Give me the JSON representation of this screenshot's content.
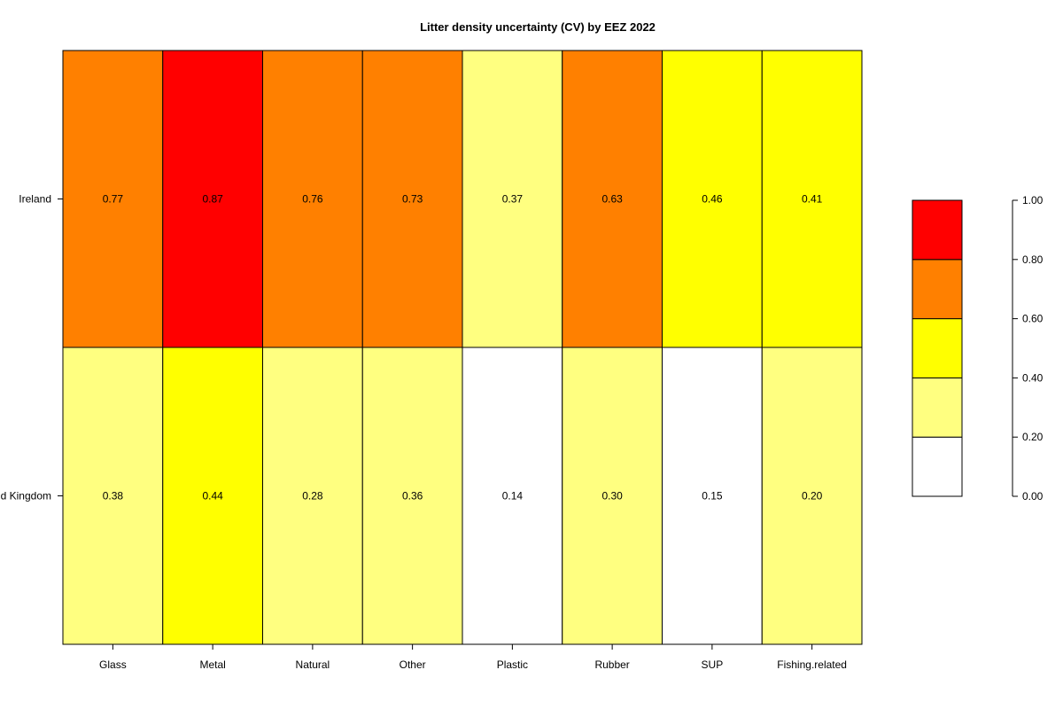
{
  "chart_data": {
    "type": "heatmap",
    "title": "Litter density uncertainty (CV) by EEZ 2022",
    "rows": [
      "Ireland",
      "d Kingdom"
    ],
    "columns": [
      "Glass",
      "Metal",
      "Natural",
      "Other",
      "Plastic",
      "Rubber",
      "SUP",
      "Fishing.related"
    ],
    "values": [
      [
        0.77,
        0.87,
        0.76,
        0.73,
        0.37,
        0.63,
        0.46,
        0.41
      ],
      [
        0.38,
        0.44,
        0.28,
        0.36,
        0.14,
        0.3,
        0.15,
        0.2
      ]
    ],
    "cell_labels": [
      [
        "0.77",
        "0.87",
        "0.76",
        "0.73",
        "0.37",
        "0.63",
        "0.46",
        "0.41"
      ],
      [
        "0.38",
        "0.44",
        "0.28",
        "0.36",
        "0.14",
        "0.30",
        "0.15",
        "0.20"
      ]
    ],
    "legend": {
      "placement": "right",
      "breaks": [
        0.0,
        0.2,
        0.4,
        0.6,
        0.8,
        1.0
      ],
      "tick_labels": [
        "0.00",
        "0.20",
        "0.40",
        "0.60",
        "0.80",
        "1.00"
      ],
      "colors": [
        "#FFFFFF",
        "#FFFF80",
        "#FFFF00",
        "#FF8000",
        "#FF0000"
      ]
    }
  }
}
